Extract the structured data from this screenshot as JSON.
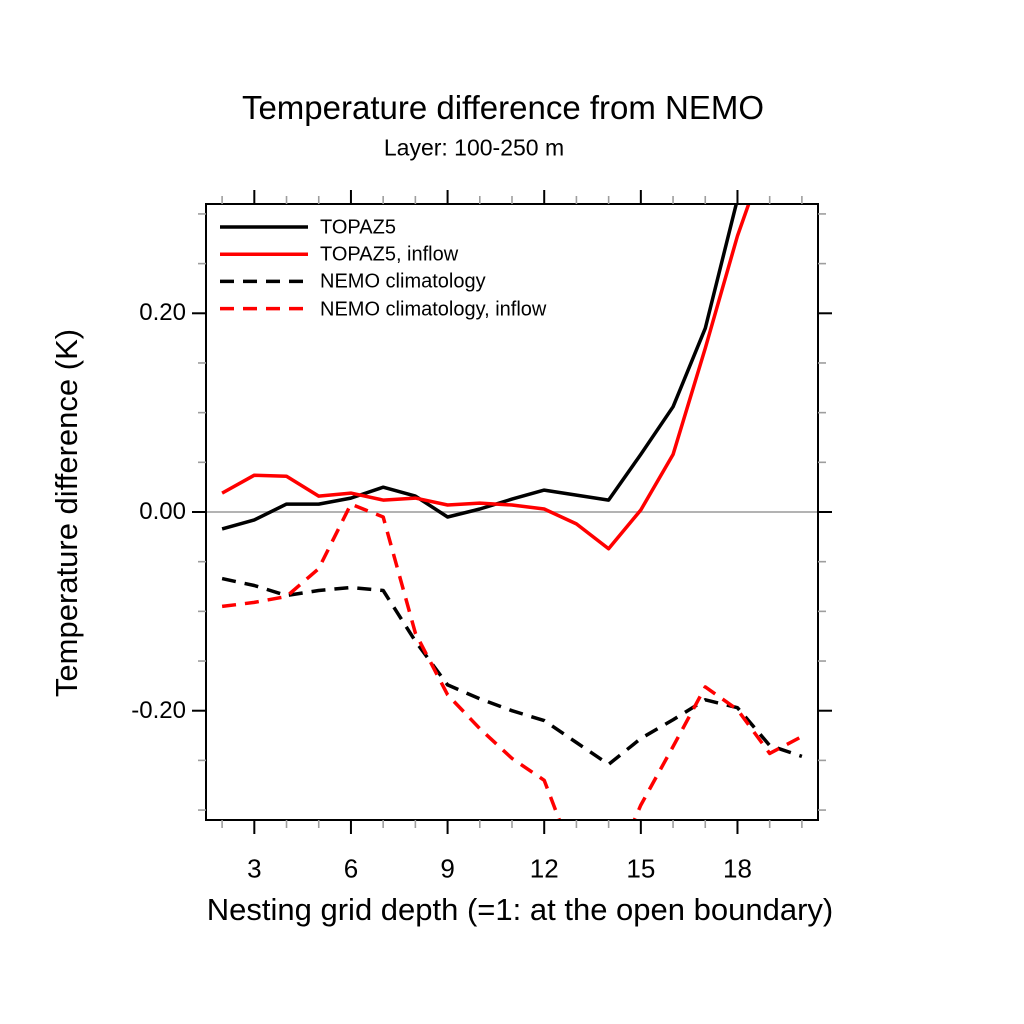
{
  "page": {
    "background": "#ffffff"
  },
  "chart_data": {
    "type": "line",
    "title": "Temperature difference from NEMO",
    "subtitle": "Layer: 100-250 m",
    "xlabel": "Nesting grid depth (=1: at the open boundary)",
    "ylabel": "Temperature difference (K)",
    "xlim": [
      1.5,
      20.5
    ],
    "ylim": [
      -0.31,
      0.31
    ],
    "x_major_ticks": [
      3,
      6,
      9,
      12,
      15,
      18
    ],
    "x_major_tick_labels": [
      "3",
      "6",
      "9",
      "12",
      "15",
      "18"
    ],
    "x_minor_tick_step": 1,
    "y_major_ticks": [
      -0.2,
      0.0,
      0.2
    ],
    "y_major_tick_labels": [
      "-0.20",
      "0.00",
      "0.20"
    ],
    "y_minor_tick_step": 0.05,
    "grid": false,
    "zero_line": {
      "show": true,
      "color": "#a8a8a8"
    },
    "axis_color": "#000000",
    "minor_tick_color": "#9e9e9e",
    "legend_position": "inside-top-left",
    "x": [
      2,
      3,
      4,
      5,
      6,
      7,
      8,
      9,
      10,
      11,
      12,
      13,
      14,
      15,
      16,
      17,
      18,
      19,
      20
    ],
    "series": [
      {
        "name": "TOPAZ5",
        "color": "#000000",
        "line_style": "solid",
        "values": [
          -0.017,
          -0.008,
          0.008,
          0.008,
          0.014,
          0.025,
          0.016,
          -0.005,
          0.003,
          0.013,
          0.022,
          0.017,
          0.012,
          0.058,
          0.106,
          0.185,
          0.315,
          null,
          null
        ]
      },
      {
        "name": "TOPAZ5, inflow",
        "color": "#ff0000",
        "line_style": "solid",
        "values": [
          0.019,
          0.037,
          0.036,
          0.016,
          0.019,
          0.012,
          0.014,
          0.007,
          0.009,
          0.007,
          0.003,
          -0.012,
          -0.037,
          0.002,
          0.058,
          0.165,
          0.278,
          0.37,
          null
        ]
      },
      {
        "name": "NEMO climatology",
        "color": "#000000",
        "line_style": "dashed",
        "values": [
          -0.067,
          -0.074,
          -0.084,
          -0.079,
          -0.076,
          -0.079,
          -0.13,
          -0.174,
          -0.188,
          -0.2,
          -0.21,
          -0.232,
          -0.254,
          -0.228,
          -0.209,
          -0.189,
          -0.197,
          -0.235,
          -0.246
        ]
      },
      {
        "name": "NEMO climatology, inflow",
        "color": "#ff0000",
        "line_style": "dashed",
        "values": [
          -0.095,
          -0.091,
          -0.085,
          -0.057,
          0.008,
          -0.005,
          -0.122,
          -0.184,
          -0.218,
          -0.248,
          -0.27,
          -0.355,
          -0.37,
          -0.295,
          -0.236,
          -0.176,
          -0.199,
          -0.243,
          -0.226
        ]
      }
    ]
  }
}
